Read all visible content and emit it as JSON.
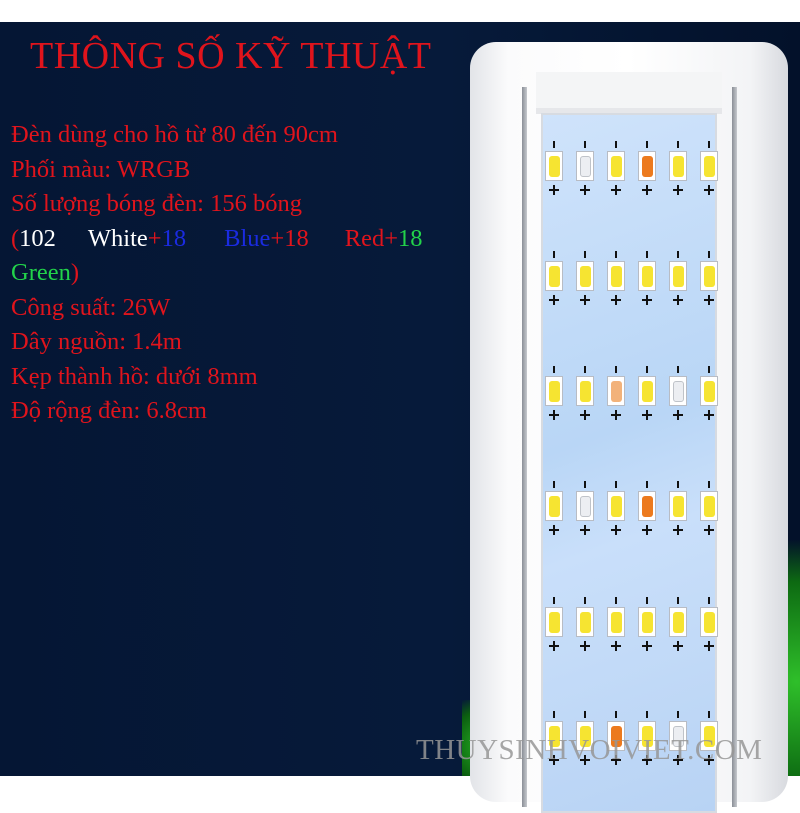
{
  "title": "THÔNG SỐ KỸ THUẬT",
  "specs": {
    "tank_size": "Đèn dùng cho hồ từ 80 đến 90cm",
    "color_mix": "Phối màu: WRGB",
    "bulb_count": "Số lượng bóng đèn: 156 bóng",
    "breakdown": {
      "open": "(",
      "white_count": "102",
      "white": "White",
      "plus1": "+",
      "blue_count": "18",
      "blue": "Blue",
      "plus2": "+18",
      "red": "Red",
      "plus3": "+",
      "green_count": "18",
      "green": "Green",
      "close": ")"
    },
    "power": "Công suất: 26W",
    "cable": "Dây nguồn: 1.4m",
    "clamp": "Kẹp thành hồ: dưới 8mm",
    "width": "Độ rộng đèn: 6.8cm"
  },
  "watermark": "THUYSINHVOIVIET.COM",
  "led_rows": [
    [
      "Y",
      "W",
      "Y",
      "O",
      "Y",
      "Y"
    ],
    [
      "Y",
      "Y",
      "Y",
      "Y",
      "Y",
      "Y"
    ],
    [
      "Y",
      "Y",
      "L",
      "Y",
      "W",
      "Y"
    ],
    [
      "Y",
      "W",
      "Y",
      "O",
      "Y",
      "Y"
    ],
    [
      "Y",
      "Y",
      "Y",
      "Y",
      "Y",
      "Y"
    ],
    [
      "Y",
      "Y",
      "O",
      "Y",
      "W",
      "Y"
    ]
  ],
  "colors": {
    "text_red": "#e0141c",
    "background": "#061a3a",
    "blue": "#1a2be0",
    "green": "#22d34a"
  }
}
